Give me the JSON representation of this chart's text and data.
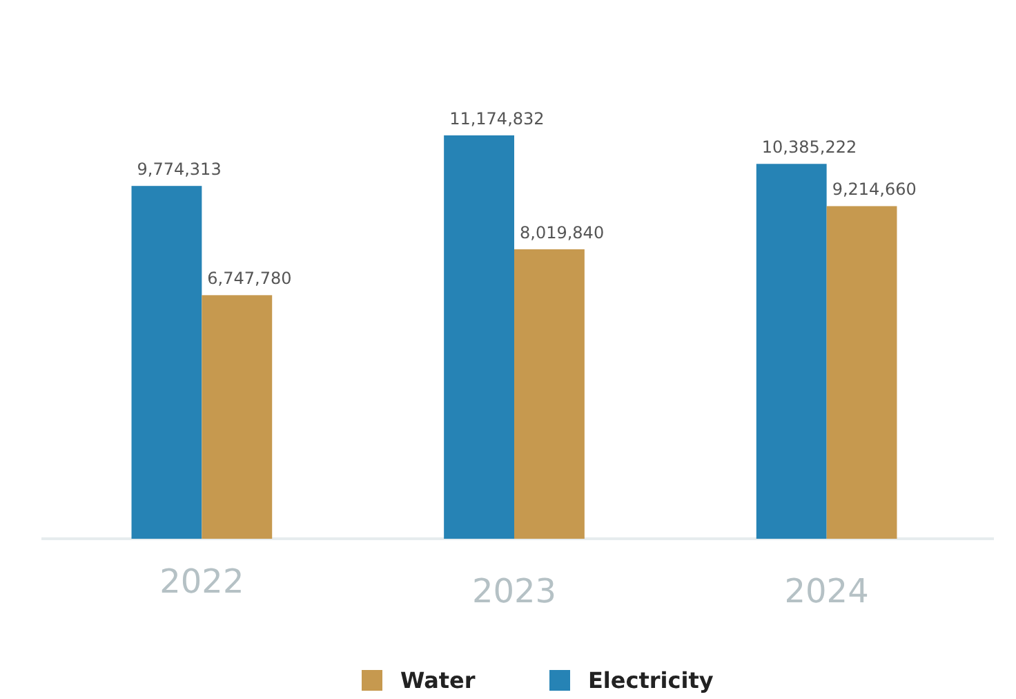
{
  "chart_data": {
    "type": "bar",
    "categories": [
      "2022",
      "2023",
      "2024"
    ],
    "series": [
      {
        "name": "Electricity",
        "color": "#2683b5",
        "values": [
          9774313,
          11174832,
          10385222
        ],
        "value_labels": [
          "9,774,313",
          "11,174,832",
          "10,385,222"
        ]
      },
      {
        "name": "Water",
        "color": "#c6994f",
        "values": [
          6747780,
          8019840,
          9214660
        ],
        "value_labels": [
          "6,747,780",
          "8,019,840",
          "9,214,660"
        ]
      }
    ],
    "legend": "bottom"
  }
}
